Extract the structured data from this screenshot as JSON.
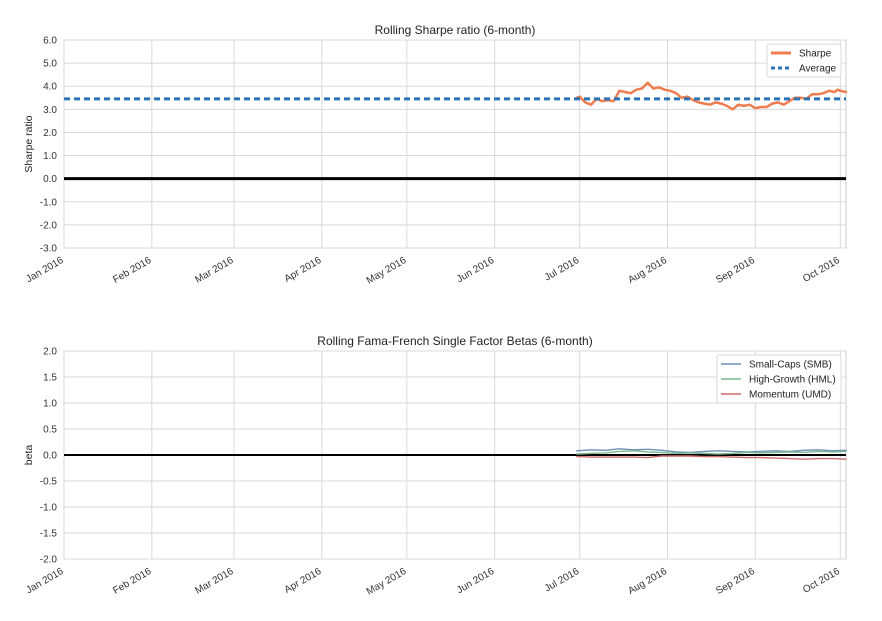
{
  "chart_data": [
    {
      "type": "line",
      "title": "Rolling Sharpe ratio (6-month)",
      "xlabel": "",
      "ylabel": "Sharpe ratio",
      "x_tick_labels": [
        "Jan 2016",
        "Feb 2016",
        "Mar 2016",
        "Apr 2016",
        "May 2016",
        "Jun 2016",
        "Jul 2016",
        "Aug 2016",
        "Sep 2016",
        "Oct 2016"
      ],
      "y_tick_labels": [
        "6.0",
        "5.0",
        "4.0",
        "3.0",
        "2.0",
        "1.0",
        "0.0",
        "-1.0",
        "-2.0",
        "-3.0"
      ],
      "xlim": [
        "2016-01-01",
        "2016-10-03"
      ],
      "ylim": [
        -3.0,
        6.0
      ],
      "grid": true,
      "legend_position": "top-right",
      "zero_line": 0.0,
      "series": [
        {
          "name": "Sharpe",
          "color": "#f07d4f",
          "style": "solid",
          "x": [
            "2016-06-30",
            "2016-07-01",
            "2016-07-03",
            "2016-07-05",
            "2016-07-07",
            "2016-07-09",
            "2016-07-11",
            "2016-07-13",
            "2016-07-15",
            "2016-07-17",
            "2016-07-19",
            "2016-07-21",
            "2016-07-23",
            "2016-07-25",
            "2016-07-27",
            "2016-07-29",
            "2016-07-31",
            "2016-08-02",
            "2016-08-04",
            "2016-08-06",
            "2016-08-08",
            "2016-08-10",
            "2016-08-12",
            "2016-08-14",
            "2016-08-16",
            "2016-08-18",
            "2016-08-20",
            "2016-08-22",
            "2016-08-24",
            "2016-08-26",
            "2016-08-28",
            "2016-08-30",
            "2016-09-01",
            "2016-09-03",
            "2016-09-05",
            "2016-09-07",
            "2016-09-09",
            "2016-09-11",
            "2016-09-13",
            "2016-09-15",
            "2016-09-17",
            "2016-09-19",
            "2016-09-21",
            "2016-09-23",
            "2016-09-25",
            "2016-09-27",
            "2016-09-29",
            "2016-09-30",
            "2016-10-01",
            "2016-10-03"
          ],
          "values": [
            3.5,
            3.55,
            3.3,
            3.2,
            3.45,
            3.35,
            3.4,
            3.35,
            3.8,
            3.75,
            3.7,
            3.85,
            3.9,
            4.15,
            3.9,
            3.95,
            3.85,
            3.8,
            3.7,
            3.5,
            3.55,
            3.4,
            3.3,
            3.25,
            3.2,
            3.3,
            3.25,
            3.15,
            3.0,
            3.2,
            3.15,
            3.2,
            3.05,
            3.1,
            3.1,
            3.25,
            3.3,
            3.2,
            3.35,
            3.5,
            3.5,
            3.45,
            3.65,
            3.65,
            3.7,
            3.8,
            3.75,
            3.85,
            3.8,
            3.75
          ]
        },
        {
          "name": "Average",
          "color": "#2b73b4",
          "style": "dashed",
          "x": [
            "2016-01-01",
            "2016-10-03"
          ],
          "values": [
            3.45,
            3.45
          ]
        }
      ]
    },
    {
      "type": "line",
      "title": "Rolling Fama-French Single Factor Betas (6-month)",
      "xlabel": "",
      "ylabel": "beta",
      "x_tick_labels": [
        "Jan 2016",
        "Feb 2016",
        "Mar 2016",
        "Apr 2016",
        "May 2016",
        "Jun 2016",
        "Jul 2016",
        "Aug 2016",
        "Sep 2016",
        "Oct 2016"
      ],
      "y_tick_labels": [
        "2.0",
        "1.5",
        "1.0",
        "0.5",
        "0.0",
        "-0.5",
        "-1.0",
        "-1.5",
        "-2.0"
      ],
      "xlim": [
        "2016-01-01",
        "2016-10-03"
      ],
      "ylim": [
        -2.0,
        2.0
      ],
      "grid": true,
      "legend_position": "top-right",
      "zero_line": 0.0,
      "series": [
        {
          "name": "Small-Caps (SMB)",
          "color": "#6f8fb8",
          "style": "solid",
          "x": [
            "2016-06-30",
            "2016-07-05",
            "2016-07-10",
            "2016-07-15",
            "2016-07-20",
            "2016-07-25",
            "2016-07-30",
            "2016-08-04",
            "2016-08-09",
            "2016-08-14",
            "2016-08-19",
            "2016-08-24",
            "2016-08-29",
            "2016-09-03",
            "2016-09-08",
            "2016-09-13",
            "2016-09-18",
            "2016-09-23",
            "2016-09-28",
            "2016-10-03"
          ],
          "values": [
            0.08,
            0.1,
            0.09,
            0.12,
            0.1,
            0.11,
            0.09,
            0.06,
            0.05,
            0.07,
            0.08,
            0.07,
            0.06,
            0.07,
            0.08,
            0.07,
            0.09,
            0.1,
            0.08,
            0.09
          ]
        },
        {
          "name": "High-Growth (HML)",
          "color": "#79b98c",
          "style": "solid",
          "x": [
            "2016-06-30",
            "2016-07-05",
            "2016-07-10",
            "2016-07-15",
            "2016-07-20",
            "2016-07-25",
            "2016-07-30",
            "2016-08-04",
            "2016-08-09",
            "2016-08-14",
            "2016-08-19",
            "2016-08-24",
            "2016-08-29",
            "2016-09-03",
            "2016-09-08",
            "2016-09-13",
            "2016-09-18",
            "2016-09-23",
            "2016-09-28",
            "2016-10-03"
          ],
          "values": [
            0.02,
            0.03,
            0.04,
            0.07,
            0.08,
            0.06,
            0.05,
            0.03,
            0.04,
            0.03,
            0.02,
            0.03,
            0.05,
            0.04,
            0.05,
            0.06,
            0.05,
            0.07,
            0.06,
            0.07
          ]
        },
        {
          "name": "Momentum (UMD)",
          "color": "#d06a6a",
          "style": "solid",
          "x": [
            "2016-06-30",
            "2016-07-05",
            "2016-07-10",
            "2016-07-15",
            "2016-07-20",
            "2016-07-25",
            "2016-07-30",
            "2016-08-04",
            "2016-08-09",
            "2016-08-14",
            "2016-08-19",
            "2016-08-24",
            "2016-08-29",
            "2016-09-03",
            "2016-09-08",
            "2016-09-13",
            "2016-09-18",
            "2016-09-23",
            "2016-09-28",
            "2016-10-03"
          ],
          "values": [
            -0.03,
            -0.04,
            -0.04,
            -0.04,
            -0.04,
            -0.05,
            -0.02,
            -0.02,
            -0.02,
            -0.03,
            -0.03,
            -0.04,
            -0.05,
            -0.05,
            -0.06,
            -0.07,
            -0.08,
            -0.07,
            -0.07,
            -0.08
          ]
        }
      ]
    }
  ]
}
